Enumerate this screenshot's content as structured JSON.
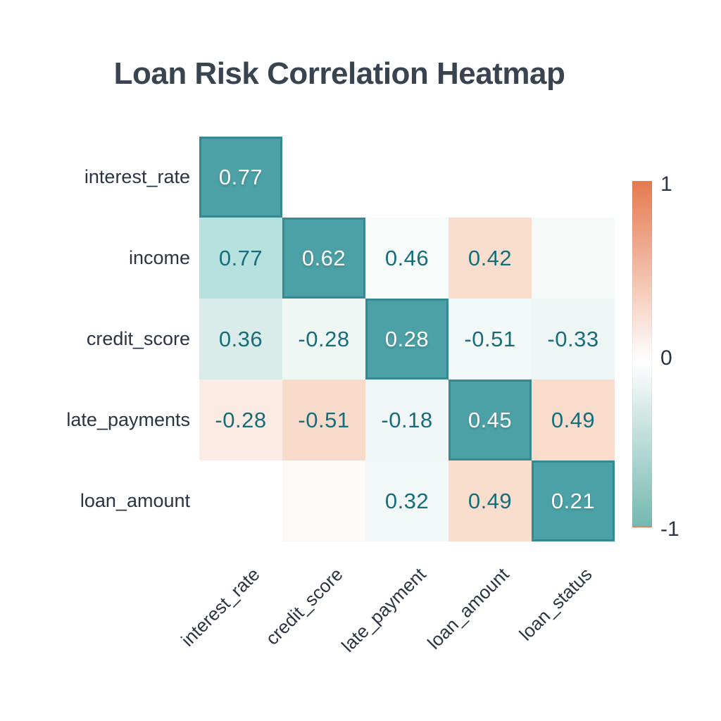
{
  "title": "Loan Risk Correlation Heatmap",
  "colors": {
    "background": "#ffffff",
    "title_text": "#3a4450",
    "label_text": "#2a3442",
    "value_teal_text": "#176e7a",
    "value_light_text": "#ffffff",
    "diagonal_cell": "#4ca1a6",
    "diagonal_border": "#2e8187"
  },
  "heatmap": {
    "row_labels": [
      "interest_rate",
      "income",
      "credit_score",
      "late_payments",
      "loan_amount"
    ],
    "col_labels": [
      "interest_rate",
      "credit_score",
      "late_payment",
      "loan_amount",
      "loan_status"
    ],
    "cells": [
      [
        {
          "value": "0.77",
          "bg": "#4ca1a6",
          "text": "light",
          "diag": true
        },
        {
          "value": "",
          "bg": "#ffffff"
        },
        {
          "value": "",
          "bg": "#ffffff"
        },
        {
          "value": "",
          "bg": "#ffffff"
        },
        {
          "value": "",
          "bg": "#ffffff"
        }
      ],
      [
        {
          "value": "0.77",
          "bg": "#b6e1de",
          "text": "teal"
        },
        {
          "value": "0.62",
          "bg": "#4ca1a6",
          "text": "light",
          "diag": true
        },
        {
          "value": "0.46",
          "bg": "#f6fbfa",
          "text": "teal"
        },
        {
          "value": "0.42",
          "bg": "#f9ddcd",
          "text": "teal"
        },
        {
          "value": "",
          "bg": "#f5faf9"
        }
      ],
      [
        {
          "value": "0.36",
          "bg": "#d9ece9",
          "text": "teal"
        },
        {
          "value": "-0.28",
          "bg": "#eff7f5",
          "text": "teal"
        },
        {
          "value": "0.28",
          "bg": "#4ca1a6",
          "text": "light",
          "diag": true
        },
        {
          "value": "-0.51",
          "bg": "#f3f9f8",
          "text": "teal"
        },
        {
          "value": "-0.33",
          "bg": "#edf6f4",
          "text": "teal"
        }
      ],
      [
        {
          "value": "-0.28",
          "bg": "#fcebe2",
          "text": "teal"
        },
        {
          "value": "-0.51",
          "bg": "#f8dbca",
          "text": "teal"
        },
        {
          "value": "-0.18",
          "bg": "#f0f7f6",
          "text": "teal"
        },
        {
          "value": "0.45",
          "bg": "#4ca1a6",
          "text": "light",
          "diag": true
        },
        {
          "value": "0.49",
          "bg": "#f9dccc",
          "text": "teal"
        }
      ],
      [
        {
          "value": "",
          "bg": "#ffffff"
        },
        {
          "value": "",
          "bg": "#fdf9f6"
        },
        {
          "value": "0.32",
          "bg": "#f1f8f7",
          "text": "teal"
        },
        {
          "value": "0.49",
          "bg": "#f9ddcd",
          "text": "teal"
        },
        {
          "value": "0.21",
          "bg": "#4ca1a6",
          "text": "light",
          "diag": true
        }
      ]
    ]
  },
  "colorbar": {
    "ticks": [
      "1",
      "0",
      "-1"
    ],
    "top_color": "#e57a50",
    "mid_color": "#ffffff",
    "bottom_color": "#74b8b1",
    "mid_stop_percent": 52
  },
  "chart_data": {
    "type": "heatmap",
    "title": "Loan Risk Correlation Heatmap",
    "rows": [
      "interest_rate",
      "income",
      "credit_score",
      "late_payments",
      "loan_amount"
    ],
    "columns": [
      "interest_rate",
      "credit_score",
      "late_payment",
      "loan_amount",
      "loan_status"
    ],
    "values": [
      [
        0.77,
        null,
        null,
        null,
        null
      ],
      [
        0.77,
        0.62,
        0.46,
        0.42,
        null
      ],
      [
        0.36,
        -0.28,
        0.28,
        -0.51,
        -0.33
      ],
      [
        -0.28,
        -0.51,
        -0.18,
        0.45,
        0.49
      ],
      [
        null,
        null,
        0.32,
        0.49,
        0.21
      ]
    ],
    "colorbar": {
      "min": -1,
      "max": 1,
      "tick_labels": [
        "1",
        "0",
        "-1"
      ],
      "position": "right"
    },
    "colormap": "orange-white-teal (1 = orange, -1 = teal)",
    "grid": false,
    "legend_position": "right"
  }
}
